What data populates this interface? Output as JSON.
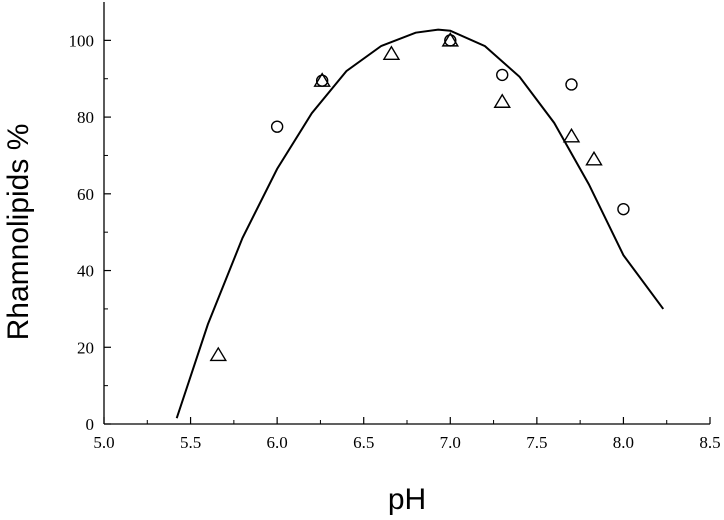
{
  "chart_data": {
    "type": "scatter",
    "title": "",
    "xlabel": "pH",
    "ylabel": "Rhamnolipids %",
    "xlim": [
      5.0,
      8.5
    ],
    "ylim": [
      0,
      110
    ],
    "xticks": [
      5.0,
      5.5,
      6.0,
      6.5,
      7.0,
      7.5,
      8.0,
      8.5
    ],
    "xtick_labels": [
      "5.0",
      "5.5",
      "6.0",
      "6.5",
      "7.0",
      "7.5",
      "8.0",
      "8.5"
    ],
    "yticks": [
      0,
      20,
      40,
      60,
      80,
      100
    ],
    "ytick_labels": [
      "0",
      "20",
      "40",
      "60",
      "80",
      "100"
    ],
    "grid": false,
    "legend": "none",
    "series": [
      {
        "marker": "circle",
        "x": [
          6.0,
          6.26,
          7.0,
          7.3,
          7.7,
          8.0
        ],
        "y": [
          77.5,
          89.5,
          100,
          91,
          88.5,
          56
        ]
      },
      {
        "marker": "triangle",
        "x": [
          5.66,
          6.26,
          6.66,
          7.0,
          7.3,
          7.7,
          7.83
        ],
        "y": [
          18,
          89.5,
          96.5,
          100,
          84,
          75,
          69
        ]
      },
      {
        "marker": "line",
        "x": [
          5.42,
          5.6,
          5.8,
          6.0,
          6.2,
          6.4,
          6.6,
          6.8,
          6.93,
          7.0,
          7.2,
          7.4,
          7.6,
          7.8,
          8.0,
          8.23
        ],
        "y": [
          1.5,
          26,
          48.5,
          66.5,
          81,
          92,
          98.5,
          102,
          102.8,
          102.5,
          98.5,
          90.5,
          78.5,
          62.5,
          44,
          30
        ]
      }
    ]
  }
}
